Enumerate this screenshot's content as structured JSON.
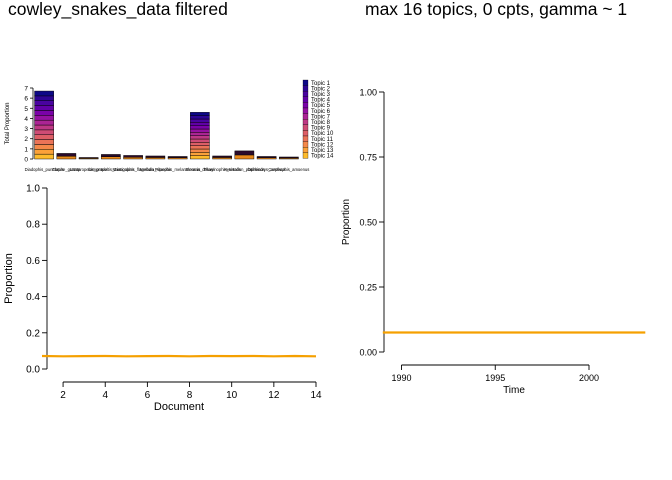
{
  "titles": {
    "left": "cowley_snakes_data filtered",
    "right": "max 16 topics, 0 cpts, gamma ~ 1"
  },
  "colors": {
    "background": "#ffffff",
    "line": "#f5a000"
  },
  "chart_data": [
    {
      "type": "bar",
      "stacked": true,
      "ylabel": "Total Proportion",
      "xlabel": "",
      "ylim": [
        0,
        7
      ],
      "yticks": [
        0,
        1,
        2,
        3,
        4,
        5,
        6,
        7
      ],
      "legend_position": "right",
      "categories": [
        "Diadophis_punctatus",
        "Elaphe_guttata",
        "Lampropeltis_getula",
        "Lampropeltis_triangulum",
        "Masticophis_flagellum",
        "Nerodia_sipedon",
        "Pituophis_melanoleucus",
        "Storeria_dekayi",
        "Thamnophis_sirtalis",
        "Heterodon_platirhinos",
        "Opheodrys_aestivus",
        "Carphophis_amoenus"
      ],
      "category_labels": [
        "Diadophis_punctatus",
        "Elaphe_guttata",
        "Lampropeltis_getula",
        "Lampropeltis_triangulum",
        "Masticophis_flagellum",
        "Nerodia_sipedon",
        "Pituophis_melanoleucus",
        "Storeria_dekayi",
        "Thamnophis_sirtalis",
        "Heterodon_platirhinos",
        "Opheodrys_aestivus",
        "Carphophis_amoenus"
      ],
      "totals": [
        6.7,
        0.55,
        0.15,
        0.45,
        0.35,
        0.3,
        0.25,
        4.6,
        0.3,
        0.8,
        0.25,
        0.2
      ],
      "legend": [
        "Topic 1",
        "Topic 2",
        "Topic 3",
        "Topic 4",
        "Topic 5",
        "Topic 6",
        "Topic 7",
        "Topic 8",
        "Topic 9",
        "Topic 10",
        "Topic 11",
        "Topic 12",
        "Topic 13",
        "Topic 14"
      ],
      "palette": [
        "#0d0887",
        "#2d0594",
        "#4903a0",
        "#6100a7",
        "#7a02a8",
        "#9511a1",
        "#ab2494",
        "#be3885",
        "#ce4c75",
        "#dd5e66",
        "#ea7357",
        "#f48849",
        "#fba139",
        "#fdbb2b"
      ]
    },
    {
      "type": "line",
      "xlabel": "Document",
      "ylabel": "Proportion",
      "xlim": [
        1,
        14
      ],
      "ylim": [
        0,
        1
      ],
      "xticks": [
        2,
        4,
        6,
        8,
        10,
        12,
        14
      ],
      "yticks": [
        "0.0",
        "0.2",
        "0.4",
        "0.6",
        "0.8",
        "1.0"
      ],
      "series": [
        {
          "x": [
            1,
            2,
            3,
            4,
            5,
            6,
            7,
            8,
            9,
            10,
            11,
            12,
            13,
            14
          ],
          "values": [
            0.072,
            0.07,
            0.071,
            0.072,
            0.07,
            0.071,
            0.072,
            0.07,
            0.072,
            0.071,
            0.072,
            0.07,
            0.072,
            0.07
          ]
        }
      ]
    },
    {
      "type": "line",
      "xlabel": "Time",
      "ylabel": "Proportion",
      "xlim": [
        1988,
        2004
      ],
      "ylim": [
        0,
        1
      ],
      "xticks": [
        1990,
        1995,
        2000
      ],
      "yticks": [
        "0.00",
        "0.25",
        "0.50",
        "0.75",
        "1.00"
      ],
      "series": [
        {
          "x": [
            1989,
            2003
          ],
          "values": [
            0.075,
            0.075
          ]
        }
      ]
    }
  ]
}
